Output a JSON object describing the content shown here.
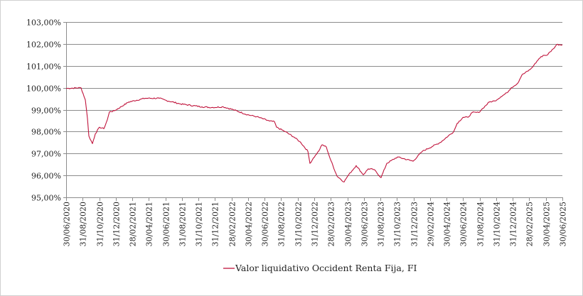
{
  "chart_data": {
    "type": "line",
    "title": "",
    "xlabel": "",
    "ylabel": "",
    "x_unit": "months since 30/06/2020",
    "ylim": [
      95,
      103
    ],
    "y_ticks": [
      95,
      96,
      97,
      98,
      99,
      100,
      101,
      102,
      103
    ],
    "y_tick_labels": [
      "95,00%",
      "96,00%",
      "97,00%",
      "98,00%",
      "99,00%",
      "100,00%",
      "101,00%",
      "102,00%",
      "103,00%"
    ],
    "x_tick_labels": [
      "30/06/2020",
      "31/08/2020",
      "31/10/2020",
      "31/12/2020",
      "28/02/2021",
      "30/04/2021",
      "30/06/2021",
      "31/08/2021",
      "31/10/2021",
      "31/12/2021",
      "28/02/2022",
      "30/04/2022",
      "30/06/2022",
      "31/08/2022",
      "31/10/2022",
      "31/12/2022",
      "28/02/2023",
      "30/04/2023",
      "30/06/2023",
      "31/08/2023",
      "31/10/2023",
      "31/12/2023",
      "29/02/2024",
      "30/04/2024",
      "30/06/2024",
      "31/08/2024",
      "31/10/2024",
      "31/12/2024",
      "28/02/2025",
      "30/04/2025",
      "30/06/2025"
    ],
    "xlim": [
      0,
      60
    ],
    "grid": true,
    "legend_position": "bottom",
    "series": [
      {
        "name": "Valor liquidativo Occident Renta Fija, FI",
        "color": "#C0143C",
        "x": [
          0,
          1.8,
          2.32,
          2.58,
          2.75,
          3.18,
          3.53,
          4.04,
          4.56,
          4.99,
          5.24,
          5.85,
          7.57,
          9.54,
          11.26,
          12.12,
          13.84,
          16.42,
          17.62,
          19.0,
          20.2,
          21.92,
          23.04,
          24.59,
          25.19,
          25.44,
          26.48,
          27.59,
          28.37,
          29.23,
          29.48,
          29.91,
          30.52,
          30.95,
          31.46,
          31.89,
          32.75,
          33.61,
          34.04,
          35.07,
          35.93,
          36.53,
          37.22,
          38.08,
          38.77,
          40.06,
          41.95,
          43.07,
          45.22,
          46.86,
          47.29,
          47.98,
          48.58,
          49.09,
          49.87,
          50.38,
          51.16,
          51.84,
          52.53,
          53.3,
          53.81,
          54.59,
          55.1,
          56.13,
          56.56,
          57.16,
          57.68,
          58.11,
          58.88,
          59.31,
          60
        ],
        "y": [
          99.97,
          100.0,
          99.45,
          98.6,
          97.8,
          97.45,
          97.9,
          98.2,
          98.13,
          98.55,
          98.9,
          98.95,
          99.35,
          99.52,
          99.52,
          99.42,
          99.26,
          99.13,
          99.1,
          99.13,
          99.0,
          98.77,
          98.68,
          98.48,
          98.45,
          98.2,
          98.0,
          97.74,
          97.5,
          97.1,
          96.55,
          96.8,
          97.1,
          97.4,
          97.3,
          96.8,
          95.97,
          95.7,
          95.97,
          96.45,
          96.03,
          96.3,
          96.27,
          95.9,
          96.55,
          96.84,
          96.65,
          97.1,
          97.5,
          98.0,
          98.38,
          98.65,
          98.65,
          98.87,
          98.87,
          99.06,
          99.35,
          99.4,
          99.58,
          99.77,
          100.0,
          100.2,
          100.58,
          100.84,
          101.03,
          101.32,
          101.48,
          101.48,
          101.77,
          101.97,
          101.97
        ]
      }
    ]
  }
}
